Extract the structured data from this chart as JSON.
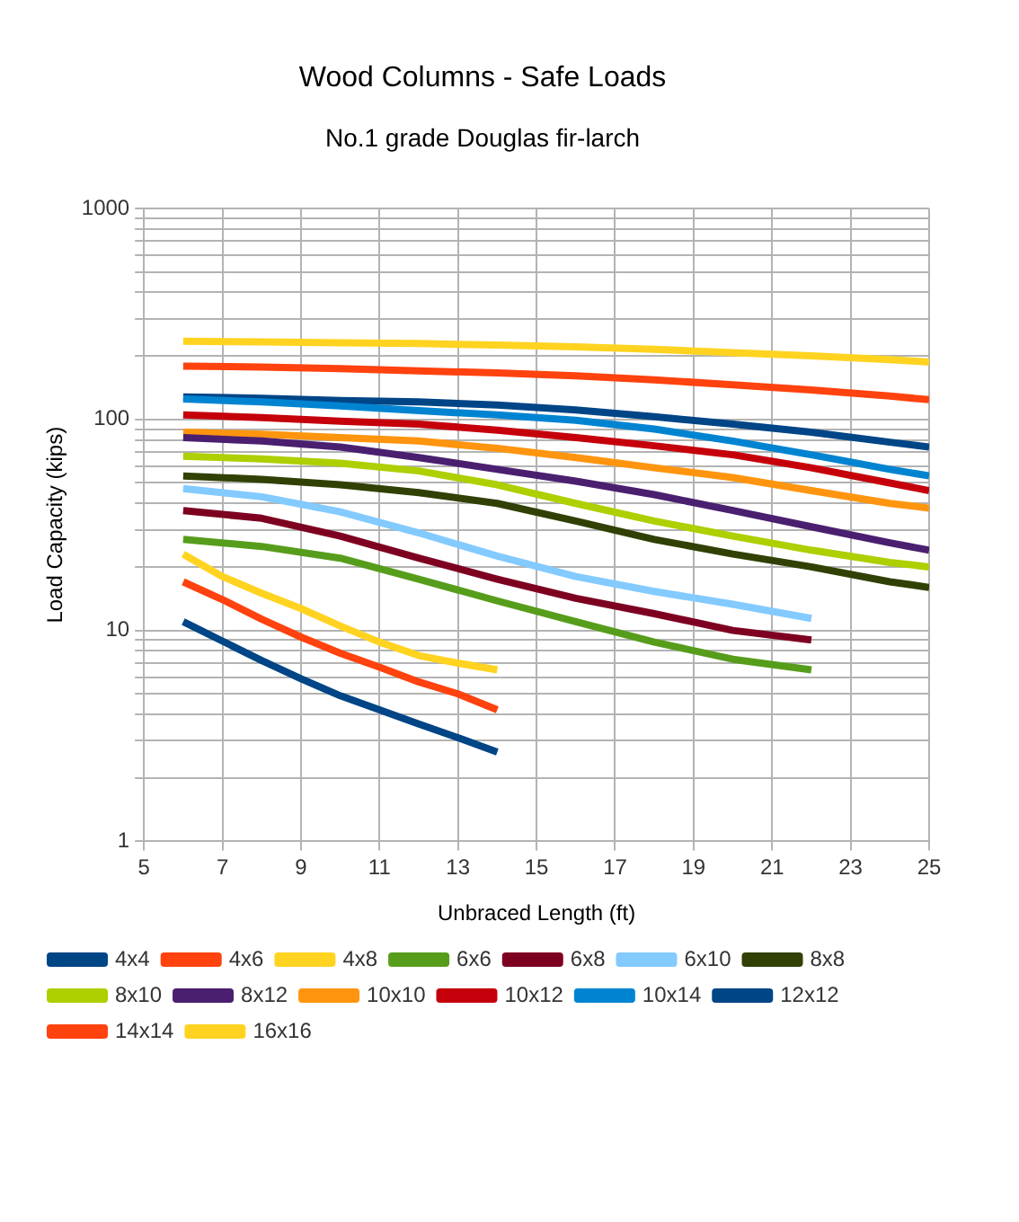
{
  "chart_data": {
    "type": "line",
    "title": "Wood Columns - Safe Loads",
    "subtitle": "No.1 grade Douglas fir-larch",
    "xlabel": "Unbraced Length (ft)",
    "ylabel": "Load Capacity (kips)",
    "log": "y",
    "grid": true,
    "legend": "bottom",
    "marker": "none",
    "line_style": "solid",
    "xlim": [
      5,
      25
    ],
    "xticks": [
      5,
      7,
      9,
      11,
      13,
      15,
      17,
      19,
      21,
      23,
      25
    ],
    "ylim": [
      1,
      1000
    ],
    "yticks": [
      1,
      {
        "value": 2,
        "label": null
      },
      {
        "value": 3,
        "label": null
      },
      {
        "value": 4,
        "label": null
      },
      {
        "value": 5,
        "label": null
      },
      {
        "value": 6,
        "label": null
      },
      {
        "value": 7,
        "label": null
      },
      {
        "value": 8,
        "label": null
      },
      {
        "value": 9,
        "label": null
      },
      10,
      {
        "value": 20,
        "label": null
      },
      {
        "value": 30,
        "label": null
      },
      {
        "value": 40,
        "label": null
      },
      {
        "value": 50,
        "label": null
      },
      {
        "value": 60,
        "label": null
      },
      {
        "value": 70,
        "label": null
      },
      {
        "value": 80,
        "label": null
      },
      {
        "value": 90,
        "label": null
      },
      100,
      {
        "value": 200,
        "label": null
      },
      {
        "value": 300,
        "label": null
      },
      {
        "value": 400,
        "label": null
      },
      {
        "value": 500,
        "label": null
      },
      {
        "value": 600,
        "label": null
      },
      {
        "value": 700,
        "label": null
      },
      {
        "value": 800,
        "label": null
      },
      {
        "value": 900,
        "label": null
      },
      1000
    ],
    "series": [
      {
        "name": "4x4",
        "color": "#004586",
        "x": [
          6,
          7,
          8,
          9,
          10,
          11,
          12,
          13,
          14
        ],
        "values": [
          11,
          8.9,
          7.2,
          5.9,
          4.9,
          4.2,
          3.6,
          3.1,
          2.65
        ]
      },
      {
        "name": "4x6",
        "color": "#ff420e",
        "x": [
          6,
          7,
          8,
          9,
          10,
          11,
          12,
          13,
          14
        ],
        "values": [
          17,
          14,
          11.3,
          9.3,
          7.8,
          6.7,
          5.7,
          5.0,
          4.2
        ]
      },
      {
        "name": "4x8",
        "color": "#ffd320",
        "x": [
          6,
          7,
          8,
          9,
          10,
          11,
          12,
          13,
          14
        ],
        "values": [
          23,
          18,
          15,
          12.7,
          10.5,
          8.8,
          7.6,
          7.0,
          6.5
        ]
      },
      {
        "name": "6x6",
        "color": "#579d1c",
        "x": [
          6,
          8,
          10,
          12,
          14,
          16,
          18,
          20,
          22
        ],
        "values": [
          27,
          25,
          22,
          17.5,
          13.8,
          11,
          8.8,
          7.3,
          6.5
        ]
      },
      {
        "name": "6x8",
        "color": "#7e0021",
        "x": [
          6,
          8,
          10,
          12,
          14,
          16,
          18,
          20,
          22
        ],
        "values": [
          37,
          34,
          28,
          22,
          17.5,
          14.2,
          12,
          10,
          9
        ]
      },
      {
        "name": "6x10",
        "color": "#83caff",
        "x": [
          6,
          8,
          10,
          12,
          14,
          16,
          18,
          20,
          22
        ],
        "values": [
          47,
          43,
          36.5,
          29,
          22.5,
          18,
          15.3,
          13.3,
          11.4
        ]
      },
      {
        "name": "8x8",
        "color": "#314004",
        "x": [
          6,
          8,
          10,
          12,
          14,
          16,
          18,
          20,
          22,
          24,
          25
        ],
        "values": [
          54,
          52,
          49,
          45,
          40,
          33,
          27,
          23,
          20,
          17,
          16
        ]
      },
      {
        "name": "8x10",
        "color": "#aecf00",
        "x": [
          6,
          8,
          10,
          12,
          14,
          16,
          18,
          20,
          22,
          24,
          25
        ],
        "values": [
          67,
          65,
          62,
          57,
          49,
          40,
          33,
          28,
          24,
          21,
          20
        ]
      },
      {
        "name": "8x12",
        "color": "#4b1f6f",
        "x": [
          6,
          8,
          10,
          12,
          14,
          16,
          18,
          20,
          22,
          24,
          25
        ],
        "values": [
          82,
          79,
          74,
          66,
          58,
          51,
          44,
          37,
          31,
          26,
          24
        ]
      },
      {
        "name": "10x10",
        "color": "#ff950e",
        "x": [
          6,
          8,
          10,
          12,
          14,
          16,
          18,
          20,
          22,
          24,
          25
        ],
        "values": [
          87,
          85,
          82,
          79,
          73,
          66,
          59,
          53,
          46,
          40,
          38
        ]
      },
      {
        "name": "10x12",
        "color": "#c5000b",
        "x": [
          6,
          8,
          10,
          12,
          14,
          16,
          18,
          20,
          22,
          24,
          25
        ],
        "values": [
          105,
          102,
          98,
          95,
          89,
          82,
          75,
          68,
          59,
          50,
          46
        ]
      },
      {
        "name": "10x14",
        "color": "#0084d1",
        "x": [
          6,
          8,
          10,
          12,
          14,
          16,
          18,
          20,
          22,
          24,
          25
        ],
        "values": [
          125,
          121,
          116,
          110,
          105,
          99,
          90,
          79,
          68,
          58,
          54
        ]
      },
      {
        "name": "12x12",
        "color": "#004586",
        "x": [
          6,
          8,
          10,
          12,
          14,
          16,
          18,
          20,
          22,
          24,
          25
        ],
        "values": [
          128,
          126,
          123,
          121,
          117,
          111,
          103,
          95,
          87,
          78,
          74
        ]
      },
      {
        "name": "14x14",
        "color": "#ff420e",
        "x": [
          6,
          8,
          10,
          12,
          14,
          16,
          18,
          20,
          22,
          24,
          25
        ],
        "values": [
          179,
          177,
          174,
          170,
          166,
          161,
          154,
          146,
          138,
          129,
          124
        ]
      },
      {
        "name": "16x16",
        "color": "#ffd320",
        "x": [
          6,
          8,
          10,
          12,
          14,
          16,
          18,
          20,
          22,
          24,
          25
        ],
        "values": [
          235,
          233,
          231,
          229,
          225,
          221,
          215,
          207,
          200,
          192,
          187
        ]
      }
    ]
  }
}
